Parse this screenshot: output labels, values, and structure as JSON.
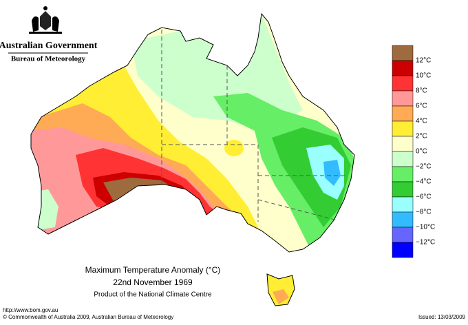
{
  "header": {
    "government": "Australian Government",
    "bureau": "Bureau of Meteorology"
  },
  "legend": {
    "labels": [
      "12°C",
      "10°C",
      "8°C",
      "6°C",
      "4°C",
      "2°C",
      "0°C",
      "−2°C",
      "−4°C",
      "−6°C",
      "−8°C",
      "−10°C",
      "−12°C"
    ],
    "colors": [
      "#9e6b3e",
      "#cc0000",
      "#ff3333",
      "#ff9999",
      "#ffaa55",
      "#ffee33",
      "#ffffcc",
      "#ccffcc",
      "#66ee66",
      "#33cc33",
      "#99ffff",
      "#33bbff",
      "#6666ff",
      "#0000ff"
    ]
  },
  "caption": {
    "title": "Maximum Temperature Anomaly (°C)",
    "date": "22nd November 1969",
    "product": "Product of the National Climate Centre"
  },
  "footer": {
    "url": "http://www.bom.gov.au",
    "copyright": "© Commonwealth of Australia 2009, Australian Bureau of Meteorology",
    "issued": "Issued: 13/03/2009"
  }
}
